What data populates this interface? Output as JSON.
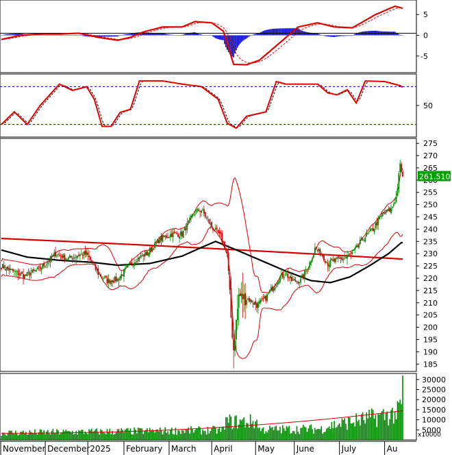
{
  "chart_data": {
    "type": "candlestick",
    "months": [
      "November",
      "December",
      "2025",
      "February",
      "March",
      "April",
      "May",
      "June",
      "July",
      "Au"
    ],
    "price_panel": {
      "y_ticks": [
        185,
        190,
        195,
        200,
        205,
        210,
        215,
        220,
        225,
        230,
        235,
        240,
        245,
        250,
        255,
        260,
        265,
        270,
        275
      ],
      "ylim": [
        182,
        277
      ],
      "last_price_label": "261.5100",
      "bollinger_period": 20,
      "ma_long_start": 236.2,
      "ma_long_end": 227.8,
      "ma_mid_points": [
        {
          "d": 0,
          "v": 231.5
        },
        {
          "d": 20,
          "v": 228.6
        },
        {
          "d": 45,
          "v": 227.3
        },
        {
          "d": 70,
          "v": 226.5
        },
        {
          "d": 90,
          "v": 225.3
        },
        {
          "d": 115,
          "v": 226.0
        },
        {
          "d": 140,
          "v": 229.0
        },
        {
          "d": 157,
          "v": 233.0
        },
        {
          "d": 166,
          "v": 235.0
        },
        {
          "d": 180,
          "v": 232.0
        },
        {
          "d": 200,
          "v": 227.5
        },
        {
          "d": 220,
          "v": 223.0
        },
        {
          "d": 240,
          "v": 219.0
        },
        {
          "d": 255,
          "v": 218.2
        },
        {
          "d": 270,
          "v": 220.5
        },
        {
          "d": 285,
          "v": 225.0
        },
        {
          "d": 300,
          "v": 230.0
        },
        {
          "d": 310,
          "v": 234.5
        }
      ],
      "keypoints": [
        {
          "d": 0,
          "v": 225
        },
        {
          "d": 8,
          "v": 223
        },
        {
          "d": 18,
          "v": 221
        },
        {
          "d": 25,
          "v": 222.5
        },
        {
          "d": 35,
          "v": 226
        },
        {
          "d": 42,
          "v": 230
        },
        {
          "d": 52,
          "v": 228
        },
        {
          "d": 60,
          "v": 229.5
        },
        {
          "d": 66,
          "v": 230
        },
        {
          "d": 75,
          "v": 222
        },
        {
          "d": 82,
          "v": 219
        },
        {
          "d": 90,
          "v": 219.5
        },
        {
          "d": 97,
          "v": 224
        },
        {
          "d": 105,
          "v": 228
        },
        {
          "d": 113,
          "v": 230
        },
        {
          "d": 123,
          "v": 236
        },
        {
          "d": 132,
          "v": 238
        },
        {
          "d": 140,
          "v": 238
        },
        {
          "d": 150,
          "v": 247
        },
        {
          "d": 155,
          "v": 248
        },
        {
          "d": 163,
          "v": 241
        },
        {
          "d": 170,
          "v": 237
        },
        {
          "d": 175,
          "v": 230
        },
        {
          "d": 178,
          "v": 204
        },
        {
          "d": 180,
          "v": 191
        },
        {
          "d": 184,
          "v": 213
        },
        {
          "d": 188,
          "v": 212
        },
        {
          "d": 193,
          "v": 211
        },
        {
          "d": 198,
          "v": 209
        },
        {
          "d": 205,
          "v": 212
        },
        {
          "d": 215,
          "v": 220
        },
        {
          "d": 220,
          "v": 222
        },
        {
          "d": 225,
          "v": 219
        },
        {
          "d": 232,
          "v": 219
        },
        {
          "d": 238,
          "v": 225
        },
        {
          "d": 243,
          "v": 232
        },
        {
          "d": 248,
          "v": 230
        },
        {
          "d": 253,
          "v": 226
        },
        {
          "d": 258,
          "v": 227
        },
        {
          "d": 265,
          "v": 228
        },
        {
          "d": 272,
          "v": 230
        },
        {
          "d": 280,
          "v": 236
        },
        {
          "d": 288,
          "v": 240
        },
        {
          "d": 295,
          "v": 246
        },
        {
          "d": 302,
          "v": 248
        },
        {
          "d": 306,
          "v": 253
        },
        {
          "d": 309,
          "v": 266
        },
        {
          "d": 311,
          "v": 261.5
        }
      ]
    },
    "volume_panel": {
      "y_ticks": [
        5000,
        10000,
        15000,
        20000,
        25000,
        30000
      ],
      "ylim": [
        0,
        33000
      ],
      "unit_label": "x10000",
      "ma_start": 3300,
      "ma_end": 14500,
      "spikes": [
        {
          "d": 311,
          "v": 32000
        },
        {
          "d": 309,
          "v": 20000
        }
      ]
    },
    "macd_panel": {
      "y_ticks": [
        5,
        0,
        -5
      ],
      "ylim": [
        -9,
        8.5
      ],
      "macd_points": [
        {
          "d": 0,
          "v": -1.0
        },
        {
          "d": 15,
          "v": 0.0
        },
        {
          "d": 30,
          "v": 0.3
        },
        {
          "d": 45,
          "v": 0.3
        },
        {
          "d": 60,
          "v": 0.5
        },
        {
          "d": 75,
          "v": -0.5
        },
        {
          "d": 90,
          "v": -1.2
        },
        {
          "d": 100,
          "v": -0.5
        },
        {
          "d": 110,
          "v": 0.8
        },
        {
          "d": 125,
          "v": 2.0
        },
        {
          "d": 140,
          "v": 2.0
        },
        {
          "d": 150,
          "v": 3.3
        },
        {
          "d": 163,
          "v": 3.0
        },
        {
          "d": 172,
          "v": 1.0
        },
        {
          "d": 180,
          "v": -7.0
        },
        {
          "d": 190,
          "v": -7.1
        },
        {
          "d": 200,
          "v": -6.0
        },
        {
          "d": 215,
          "v": -2.0
        },
        {
          "d": 230,
          "v": 2.0
        },
        {
          "d": 245,
          "v": 3.0
        },
        {
          "d": 258,
          "v": 2.0
        },
        {
          "d": 272,
          "v": 1.8
        },
        {
          "d": 290,
          "v": 5.0
        },
        {
          "d": 305,
          "v": 7.0
        },
        {
          "d": 311,
          "v": 6.5
        }
      ]
    },
    "stoch_panel": {
      "y_ticks": [
        50
      ],
      "ylim": [
        0,
        100
      ],
      "upper_band": 80,
      "lower_band": 20,
      "k_points": [
        {
          "d": 0,
          "v": 20
        },
        {
          "d": 10,
          "v": 40
        },
        {
          "d": 20,
          "v": 20
        },
        {
          "d": 30,
          "v": 50
        },
        {
          "d": 45,
          "v": 84
        },
        {
          "d": 55,
          "v": 74
        },
        {
          "d": 66,
          "v": 80
        },
        {
          "d": 72,
          "v": 60
        },
        {
          "d": 78,
          "v": 17
        },
        {
          "d": 85,
          "v": 17
        },
        {
          "d": 92,
          "v": 39
        },
        {
          "d": 100,
          "v": 44
        },
        {
          "d": 107,
          "v": 89
        },
        {
          "d": 125,
          "v": 89
        },
        {
          "d": 140,
          "v": 84
        },
        {
          "d": 155,
          "v": 80
        },
        {
          "d": 168,
          "v": 60
        },
        {
          "d": 175,
          "v": 22
        },
        {
          "d": 182,
          "v": 14
        },
        {
          "d": 190,
          "v": 33
        },
        {
          "d": 205,
          "v": 40
        },
        {
          "d": 213,
          "v": 88
        },
        {
          "d": 220,
          "v": 84
        },
        {
          "d": 230,
          "v": 84
        },
        {
          "d": 245,
          "v": 84
        },
        {
          "d": 253,
          "v": 70
        },
        {
          "d": 260,
          "v": 67
        },
        {
          "d": 268,
          "v": 75
        },
        {
          "d": 275,
          "v": 54
        },
        {
          "d": 282,
          "v": 89
        },
        {
          "d": 297,
          "v": 88
        },
        {
          "d": 308,
          "v": 82
        },
        {
          "d": 311,
          "v": 79
        }
      ]
    },
    "colors": {
      "up": "#008800",
      "down": "#cc0000",
      "signal_red": "#e00000",
      "bollinger": "#d40000",
      "ma_mid": "#000000",
      "volume_bar": "#008800",
      "macd_hist": "#0000cc",
      "band_dash": "#000099",
      "price_tag": "#00a000"
    }
  }
}
